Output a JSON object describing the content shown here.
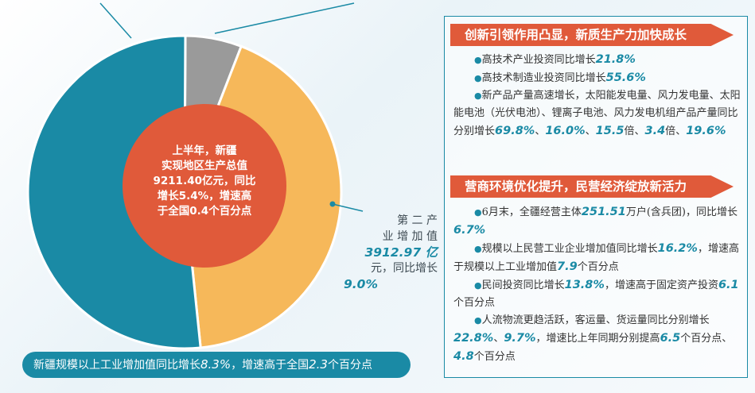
{
  "chart_data": {
    "type": "pie",
    "title": "",
    "slices": [
      {
        "label": "第二产业增加值",
        "value": 3912.97
      },
      {
        "label": "",
        "value": 535.06
      },
      {
        "label": "",
        "value": 4763.37
      }
    ],
    "total": 9211.4,
    "colors": [
      "#f6b85a",
      "#9a9a9a",
      "#1a8aa5"
    ]
  },
  "center": {
    "line1": "上半年，新疆",
    "line2": "实现地区生产总值",
    "line3": "9211.40亿元，同比",
    "line4": "增长5.4%，增速高",
    "line5": "于全国0.4个百分点"
  },
  "secondary": {
    "label1": "第 二 产",
    "label2": "业 增 加 值",
    "value": "3912.97 亿",
    "label3": "元，同比增长",
    "growth": "9.0%"
  },
  "banner": {
    "text1": "新疆规模以上工业增加值同比增长",
    "num1": "8.3%",
    "text2": "，增速高于全国",
    "num2": "2.3",
    "text3": "个百分点"
  },
  "section1": {
    "title": "创新引领作用凸显，新质生产力加快成长",
    "b1_text": "高技术产业投资同比增长",
    "b1_num": "21.8%",
    "b2_text": "高技术制造业投资同比增长",
    "b2_num": "55.6%",
    "b3_text": "新产品产量高速增长，太阳能发电量、风力发电量、太阳能电池（光伏电池）、锂离子电池、风力发电机组产品产量同比分别增长",
    "b3_n1": "69.8%",
    "b3_sep": "、",
    "b3_n2": "16.0%",
    "b3_n3": "15.5",
    "b3_u3": "倍",
    "b3_n4": "3.4",
    "b3_u4": "倍",
    "b3_n5": "19.6%"
  },
  "section2": {
    "title": "营商环境优化提升，民营经济绽放新活力",
    "b1_text": "6月末，全疆经营主体",
    "b1_num": "251.51",
    "b1_unit": "万户(含兵团)，同比增长",
    "b1_num2": "6.7%",
    "b2_text": "规模以上民营工业企业增加值同比增长",
    "b2_num": "16.2%",
    "b2_text2": "，增速高于规模以上工业增加值",
    "b2_num2": "7.9",
    "b2_unit": "个百分点",
    "b3_text": "民间投资同比增长",
    "b3_num": "13.8%",
    "b3_text2": "，增速高于固定资产投资",
    "b3_num2": "6.1",
    "b3_unit": "个百分点",
    "b4_text": "人流物流更趋活跃，客运量、货运量同比分别增长",
    "b4_num1": "22.8%",
    "b4_sep": "、",
    "b4_num2": "9.7%",
    "b4_text2": "，增速比上年同期分别提高",
    "b4_num3": "6.5",
    "b4_unit3": "个百分",
    "b4_unit3b": "点",
    "b4_num4": "4.8",
    "b4_unit4": "个百分点"
  }
}
